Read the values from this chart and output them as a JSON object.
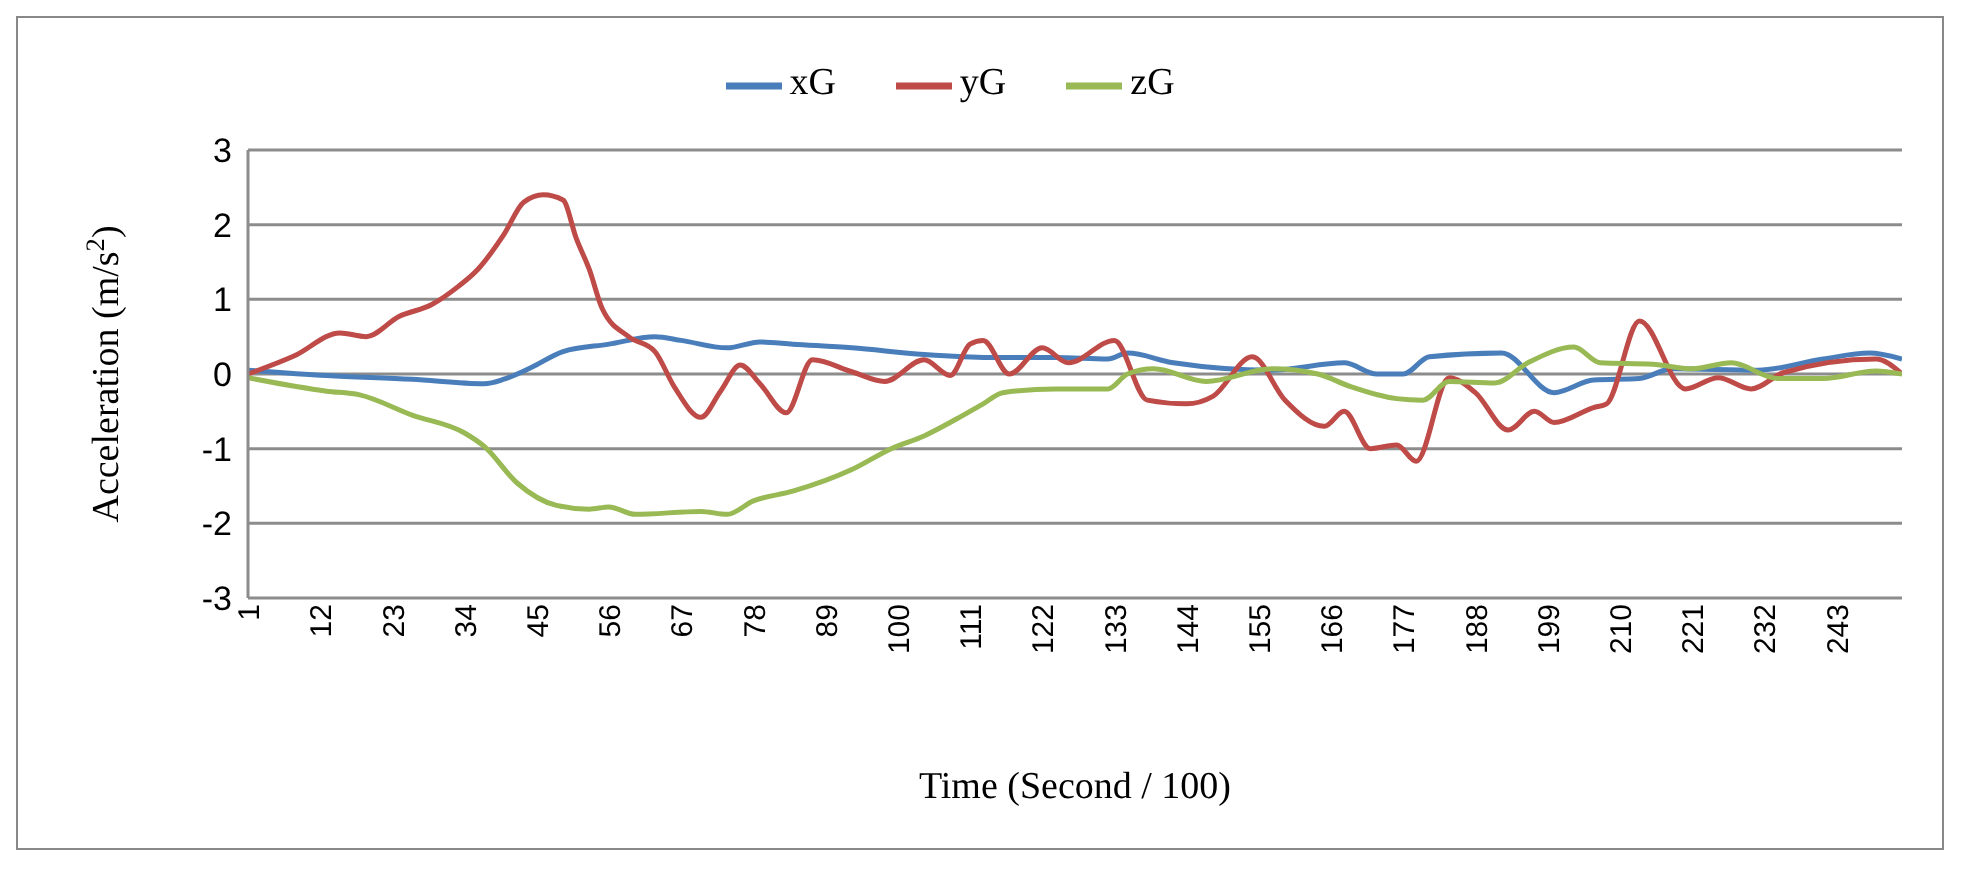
{
  "chart_data": {
    "type": "line",
    "xlabel": "Time (Second / 100)",
    "ylabel": "Acceleration (m/s$^{2}$)",
    "xlim": [
      1,
      253
    ],
    "xticks": [
      1,
      12,
      23,
      34,
      45,
      56,
      67,
      78,
      89,
      100,
      111,
      122,
      133,
      144,
      155,
      166,
      177,
      188,
      199,
      210,
      221,
      232,
      243
    ],
    "ylim": [
      -3,
      3
    ],
    "yticks": [
      -3,
      -2,
      -1,
      0,
      1,
      2,
      3
    ],
    "grid": "y",
    "legend": "top",
    "marker": "none",
    "line_style": "solid",
    "series": [
      {
        "name": "xG",
        "color": "#4a7ebb",
        "x": [
          1,
          13,
          26,
          37,
          40,
          44,
          49,
          56,
          63,
          67,
          74,
          79,
          84,
          93,
          104,
          114,
          124,
          132,
          135,
          142,
          157,
          168,
          173,
          177,
          181,
          192,
          200,
          206,
          213,
          218,
          231,
          241,
          248,
          253
        ],
        "values": [
          0.05,
          -0.02,
          -0.07,
          -0.13,
          -0.07,
          0.08,
          0.3,
          0.4,
          0.5,
          0.45,
          0.35,
          0.43,
          0.4,
          0.35,
          0.26,
          0.22,
          0.22,
          0.2,
          0.28,
          0.15,
          0.05,
          0.15,
          0,
          0,
          0.23,
          0.28,
          -0.25,
          -0.08,
          -0.06,
          0.07,
          0.05,
          0.2,
          0.28,
          0.2
        ]
      },
      {
        "name": "yG",
        "color": "#be4b48",
        "x": [
          1,
          8,
          15,
          19,
          24,
          29,
          33,
          36,
          40,
          43,
          46,
          49,
          51,
          53,
          55,
          59,
          63,
          66,
          70,
          73,
          76,
          79,
          83,
          87,
          93,
          98,
          104,
          108,
          111,
          113,
          117,
          122,
          126,
          133,
          138,
          144,
          148,
          154,
          159,
          165,
          168,
          172,
          176,
          179,
          184,
          188,
          193,
          197,
          200,
          206,
          208,
          213,
          220,
          225,
          230,
          235,
          249,
          253
        ],
        "values": [
          0,
          0.24,
          0.55,
          0.5,
          0.77,
          0.93,
          1.17,
          1.4,
          1.87,
          2.3,
          2.4,
          2.33,
          1.82,
          1.4,
          0.87,
          0.5,
          0.3,
          -0.18,
          -0.58,
          -0.23,
          0.12,
          -0.13,
          -0.52,
          0.19,
          0.03,
          -0.1,
          0.19,
          -0.02,
          0.4,
          0.45,
          0,
          0.35,
          0.15,
          0.45,
          -0.35,
          -0.4,
          -0.3,
          0.23,
          -0.35,
          -0.7,
          -0.5,
          -1,
          -0.95,
          -1.17,
          -0.05,
          -0.25,
          -0.75,
          -0.5,
          -0.65,
          -0.45,
          -0.4,
          0.71,
          -0.2,
          -0.05,
          -0.2,
          0.02,
          0.2,
          0
        ]
      },
      {
        "name": "zG",
        "color": "#98b954",
        "x": [
          1,
          13,
          18,
          26,
          34,
          37,
          42,
          48,
          53,
          56,
          60,
          70,
          74,
          78,
          84,
          93,
          99,
          104,
          109,
          113,
          116,
          124,
          132,
          135,
          139,
          147,
          157,
          164,
          169,
          176,
          180,
          184,
          191,
          196,
          203,
          207,
          215,
          221,
          227,
          234,
          241,
          249,
          253
        ],
        "values": [
          -0.05,
          -0.23,
          -0.28,
          -0.55,
          -0.79,
          -0.97,
          -1.46,
          -1.76,
          -1.81,
          -1.78,
          -1.88,
          -1.84,
          -1.88,
          -1.7,
          -1.57,
          -1.28,
          -1,
          -0.83,
          -0.6,
          -0.4,
          -0.25,
          -0.2,
          -0.2,
          0,
          0.07,
          -0.1,
          0.07,
          0,
          -0.17,
          -0.33,
          -0.35,
          -0.1,
          -0.12,
          0.15,
          0.36,
          0.15,
          0.13,
          0.07,
          0.15,
          -0.06,
          -0.06,
          0.04,
          0
        ]
      }
    ]
  }
}
